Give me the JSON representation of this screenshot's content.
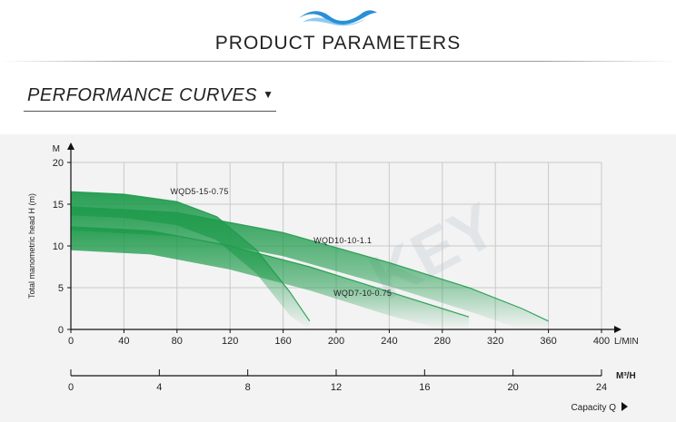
{
  "header": {
    "title": "PRODUCT PARAMETERS",
    "logo_icon": "wave-logo-icon"
  },
  "section": {
    "heading": "PERFORMANCE CURVES",
    "arrow": "▼"
  },
  "chart_data": {
    "type": "area",
    "watermark": "KEY",
    "ylabel": "Total manometric head H (m)",
    "y_unit": "M",
    "ylim": [
      0,
      20
    ],
    "y_ticks": [
      0,
      5,
      10,
      15,
      20
    ],
    "x_unit": "L/MIN",
    "xlim": [
      0,
      400
    ],
    "x_ticks": [
      0,
      40,
      80,
      120,
      160,
      200,
      240,
      280,
      320,
      360,
      400
    ],
    "x2_unit": "M³/H",
    "x2lim": [
      0,
      24
    ],
    "x2_ticks": [
      0,
      4,
      8,
      12,
      16,
      20,
      24
    ],
    "x2_label": "Capacity Q",
    "grid": true,
    "series": [
      {
        "name": "WQD5-15-0.75",
        "color": "#1f9b4c",
        "x": [
          0,
          40,
          80,
          110,
          140,
          165,
          180
        ],
        "y": [
          16.5,
          16.2,
          15.3,
          13.5,
          9.5,
          4.5,
          1.0
        ]
      },
      {
        "name": "WQD10-10-1.1",
        "color": "#1f9b4c",
        "x": [
          0,
          80,
          160,
          240,
          300,
          340,
          360
        ],
        "y": [
          14.7,
          14.0,
          11.6,
          8.0,
          5.0,
          2.5,
          1.0
        ]
      },
      {
        "name": "WQD7-10-0.75",
        "color": "#1f9b4c",
        "x": [
          0,
          60,
          120,
          180,
          240,
          280,
          300
        ],
        "y": [
          12.3,
          11.8,
          10.0,
          7.5,
          4.5,
          2.5,
          1.5
        ]
      }
    ],
    "annotations": [
      {
        "text": "WQD5-15-0.75",
        "x": 75,
        "y": 16.2
      },
      {
        "text": "WQD10-10-1.1",
        "x": 183,
        "y": 10.3
      },
      {
        "text": "WQD7-10-0.75",
        "x": 198,
        "y": 4.0
      }
    ]
  }
}
